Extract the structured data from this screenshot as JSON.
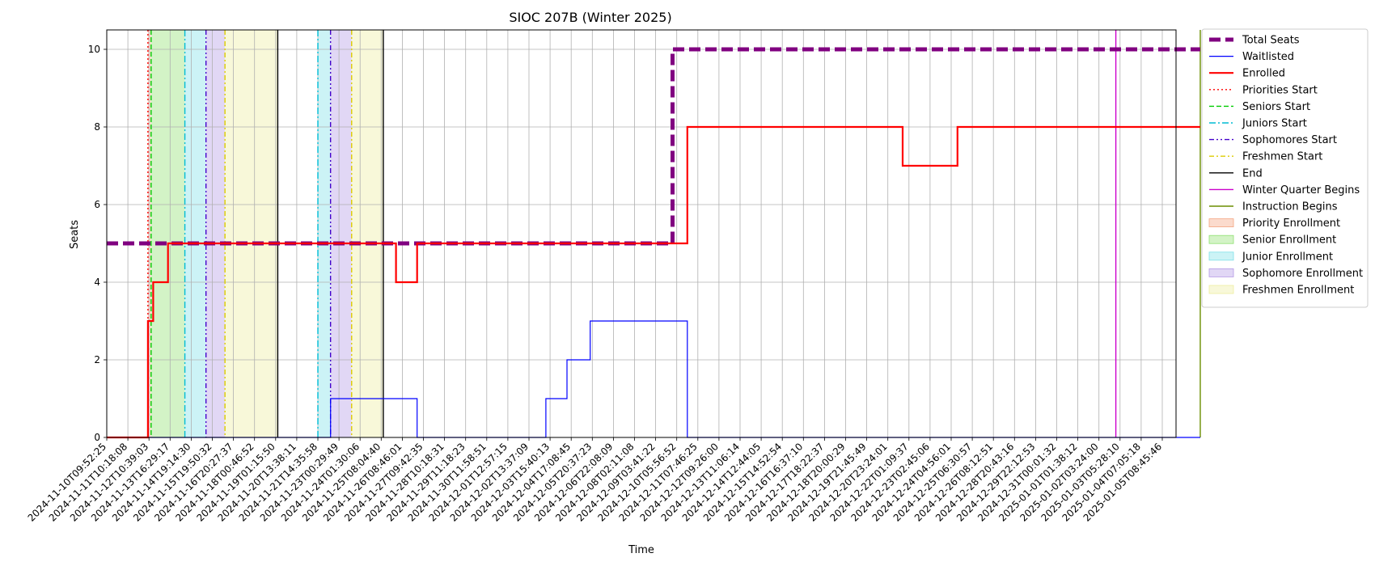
{
  "chart_data": {
    "type": "line",
    "title": "SIOC 207B (Winter 2025)",
    "xlabel": "Time",
    "ylabel": "Seats",
    "ylim": [
      0,
      10.5
    ],
    "yticks": [
      0,
      2,
      4,
      6,
      8,
      10
    ],
    "grid": true,
    "legend_position": "outside-right",
    "x_tick_labels": [
      "2024-11-10T09:52:25",
      "2024-11-11T10:18:08",
      "2024-11-12T10:39:03",
      "2024-11-13T16:29:17",
      "2024-11-14T19:14:30",
      "2024-11-15T19:50:32",
      "2024-11-16T20:27:37",
      "2024-11-18T00:46:52",
      "2024-11-19T01:15:50",
      "2024-11-20T13:38:11",
      "2024-11-21T14:35:58",
      "2024-11-23T00:29:49",
      "2024-11-24T01:30:06",
      "2024-11-25T08:04:40",
      "2024-11-26T08:46:01",
      "2024-11-27T09:42:35",
      "2024-11-28T10:18:31",
      "2024-11-29T11:18:23",
      "2024-11-30T11:58:51",
      "2024-12-01T12:57:15",
      "2024-12-02T13:37:09",
      "2024-12-03T15:40:13",
      "2024-12-04T17:08:45",
      "2024-12-05T20:37:23",
      "2024-12-06T22:08:09",
      "2024-12-08T02:11:08",
      "2024-12-09T03:41:22",
      "2024-12-10T05:56:52",
      "2024-12-11T07:46:25",
      "2024-12-12T09:26:00",
      "2024-12-13T11:06:14",
      "2024-12-14T12:44:05",
      "2024-12-15T14:52:54",
      "2024-12-16T16:37:10",
      "2024-12-17T18:22:37",
      "2024-12-18T20:00:29",
      "2024-12-19T21:45:49",
      "2024-12-20T23:24:01",
      "2024-12-22T01:09:37",
      "2024-12-23T02:45:06",
      "2024-12-24T04:56:01",
      "2024-12-25T06:30:57",
      "2024-12-26T08:12:51",
      "2024-12-28T20:43:16",
      "2024-12-29T22:12:53",
      "2024-12-31T00:01:32",
      "2025-01-01T01:38:12",
      "2025-01-02T03:24:00",
      "2025-01-03T05:28:10",
      "2025-01-04T07:05:18",
      "2025-01-05T08:45:46"
    ],
    "x_range_index": [
      0,
      51.8
    ],
    "series": [
      {
        "name": "Total Seats",
        "color": "#800080",
        "style": "dashed-thick",
        "points": [
          [
            0,
            5
          ],
          [
            26.8,
            5
          ],
          [
            26.8,
            10
          ],
          [
            51.8,
            10
          ]
        ]
      },
      {
        "name": "Waitlisted",
        "color": "#0000ff",
        "style": "solid-thin",
        "points": [
          [
            0,
            0
          ],
          [
            10.6,
            0
          ],
          [
            10.6,
            1
          ],
          [
            14.7,
            1
          ],
          [
            14.7,
            0
          ],
          [
            20.8,
            0
          ],
          [
            20.8,
            1
          ],
          [
            21.8,
            1
          ],
          [
            21.8,
            2
          ],
          [
            22.9,
            2
          ],
          [
            22.9,
            3
          ],
          [
            27.5,
            3
          ],
          [
            27.5,
            0
          ],
          [
            51.8,
            0
          ]
        ]
      },
      {
        "name": "Enrolled",
        "color": "#ff0000",
        "style": "solid",
        "points": [
          [
            0,
            0
          ],
          [
            1.95,
            0
          ],
          [
            1.95,
            3
          ],
          [
            2.2,
            3
          ],
          [
            2.2,
            4
          ],
          [
            2.9,
            4
          ],
          [
            2.9,
            5
          ],
          [
            13.7,
            5
          ],
          [
            13.7,
            4
          ],
          [
            14.7,
            4
          ],
          [
            14.7,
            5
          ],
          [
            27.5,
            5
          ],
          [
            27.5,
            8
          ],
          [
            37.7,
            8
          ],
          [
            37.7,
            7
          ],
          [
            40.3,
            7
          ],
          [
            40.3,
            8
          ],
          [
            51.8,
            8
          ]
        ]
      }
    ],
    "vertical_markers": [
      {
        "name": "Priorities Start",
        "color": "#ff0000",
        "style": "dotted",
        "x": [
          1.95
        ]
      },
      {
        "name": "Seniors Start",
        "color": "#00cc00",
        "style": "dashed",
        "x": [
          2.1
        ]
      },
      {
        "name": "Juniors Start",
        "color": "#00bcd4",
        "style": "dashdot",
        "x": [
          3.7,
          10.0
        ]
      },
      {
        "name": "Sophomores Start",
        "color": "#4400cc",
        "style": "dashdotdot",
        "x": [
          4.7,
          10.6
        ]
      },
      {
        "name": "Freshmen Start",
        "color": "#ddcc00",
        "style": "dashdot-light",
        "x": [
          5.6,
          11.6
        ]
      },
      {
        "name": "End",
        "color": "#000000",
        "style": "solid",
        "x": [
          8.1,
          13.1
        ]
      },
      {
        "name": "Winter Quarter Begins",
        "color": "#cc00cc",
        "style": "solid",
        "x": [
          47.8
        ]
      },
      {
        "name": "Instruction Begins",
        "color": "#6b8e00",
        "style": "solid",
        "x": [
          51.8
        ]
      }
    ],
    "shaded_regions": [
      {
        "name": "Priority Enrollment",
        "color": "#f4a582",
        "ranges": [
          [
            1.95,
            2.1
          ]
        ]
      },
      {
        "name": "Senior Enrollment",
        "color": "#90e070",
        "ranges": [
          [
            2.1,
            3.7
          ]
        ]
      },
      {
        "name": "Junior Enrollment",
        "color": "#7fe0e8",
        "ranges": [
          [
            3.7,
            4.7
          ],
          [
            10.0,
            10.6
          ]
        ]
      },
      {
        "name": "Sophomore Enrollment",
        "color": "#b49ae6",
        "ranges": [
          [
            4.7,
            5.6
          ],
          [
            10.6,
            11.6
          ]
        ]
      },
      {
        "name": "Freshmen Enrollment",
        "color": "#eeeea0",
        "ranges": [
          [
            5.6,
            8.1
          ],
          [
            11.6,
            13.1
          ]
        ]
      }
    ],
    "legend": [
      "Total Seats",
      "Waitlisted",
      "Enrolled",
      "Priorities Start",
      "Seniors Start",
      "Juniors Start",
      "Sophomores Start",
      "Freshmen Start",
      "End",
      "Winter Quarter Begins",
      "Instruction Begins",
      "Priority Enrollment",
      "Senior Enrollment",
      "Junior Enrollment",
      "Sophomore Enrollment",
      "Freshmen Enrollment"
    ]
  }
}
